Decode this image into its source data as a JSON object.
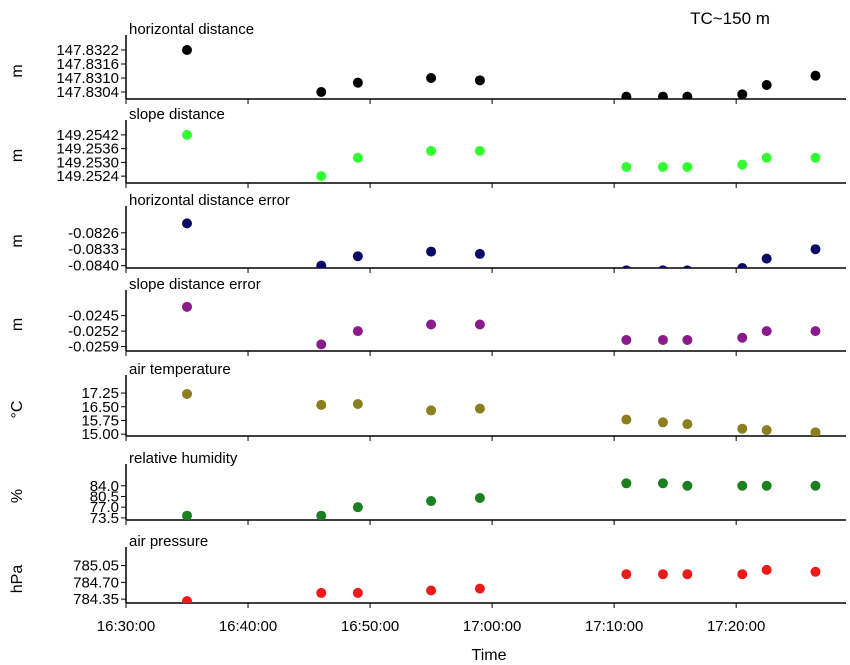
{
  "figure": {
    "annotation": "TC~150 m",
    "xlabel": "Time",
    "x_ticks": [
      "16:30:00",
      "16:40:00",
      "16:50:00",
      "17:00:00",
      "17:10:00",
      "17:20:00"
    ],
    "x_tick_minutes": [
      0,
      10,
      20,
      30,
      40,
      50
    ],
    "x_range_minutes": [
      0,
      59
    ],
    "x_origin_label": "16:30:00",
    "grid": false,
    "legend": "none"
  },
  "chart_data": [
    {
      "type": "scatter",
      "title": "horizontal distance",
      "ylabel": "m",
      "color": "#000000",
      "ylim": [
        147.8301,
        147.8325
      ],
      "yticks": [
        147.8304,
        147.831,
        147.8316,
        147.8322
      ],
      "ytick_labels": [
        "147.8304",
        "147.8310",
        "147.8316",
        "147.8322"
      ],
      "x": [
        "16:35:00",
        "16:46:00",
        "16:49:00",
        "16:55:00",
        "16:59:00",
        "17:11:00",
        "17:14:00",
        "17:16:00",
        "17:20:30",
        "17:22:30",
        "17:26:30"
      ],
      "y": [
        147.8322,
        147.8304,
        147.8308,
        147.831,
        147.8309,
        147.8302,
        147.8302,
        147.8302,
        147.8303,
        147.8307,
        147.8311
      ]
    },
    {
      "type": "scatter",
      "title": "slope distance",
      "ylabel": "m",
      "color": "#33ff33",
      "ylim": [
        149.2521,
        149.2545
      ],
      "yticks": [
        149.2524,
        149.253,
        149.2536,
        149.2542
      ],
      "ytick_labels": [
        "149.2524",
        "149.2530",
        "149.2536",
        "149.2542"
      ],
      "x": [
        "16:35:00",
        "16:46:00",
        "16:49:00",
        "16:55:00",
        "16:59:00",
        "17:11:00",
        "17:14:00",
        "17:16:00",
        "17:20:30",
        "17:22:30",
        "17:26:30"
      ],
      "y": [
        149.2542,
        149.2524,
        149.2532,
        149.2535,
        149.2535,
        149.2528,
        149.2528,
        149.2528,
        149.2529,
        149.2532,
        149.2532
      ]
    },
    {
      "type": "scatter",
      "title": "horizontal distance error",
      "ylabel": "m",
      "color": "#0a0a66",
      "ylim": [
        -0.0841,
        -0.0818
      ],
      "yticks": [
        -0.084,
        -0.0833,
        -0.0826
      ],
      "ytick_labels": [
        "-0.0840",
        "-0.0833",
        "-0.0826"
      ],
      "x": [
        "16:35:00",
        "16:46:00",
        "16:49:00",
        "16:55:00",
        "16:59:00",
        "17:11:00",
        "17:14:00",
        "17:16:00",
        "17:20:30",
        "17:22:30",
        "17:26:30"
      ],
      "y": [
        -0.0822,
        -0.084,
        -0.0836,
        -0.0834,
        -0.0835,
        -0.0842,
        -0.0842,
        -0.0842,
        -0.0841,
        -0.0837,
        -0.0833
      ]
    },
    {
      "type": "scatter",
      "title": "slope distance error",
      "ylabel": "m",
      "color": "#8b1a8b",
      "ylim": [
        -0.0261,
        -0.0237
      ],
      "yticks": [
        -0.0259,
        -0.0252,
        -0.0245
      ],
      "ytick_labels": [
        "-0.0259",
        "-0.0252",
        "-0.0245"
      ],
      "x": [
        "16:35:00",
        "16:46:00",
        "16:49:00",
        "16:55:00",
        "16:59:00",
        "17:11:00",
        "17:14:00",
        "17:16:00",
        "17:20:30",
        "17:22:30",
        "17:26:30"
      ],
      "y": [
        -0.0241,
        -0.0258,
        -0.0252,
        -0.0249,
        -0.0249,
        -0.0256,
        -0.0256,
        -0.0256,
        -0.0255,
        -0.0252,
        -0.0252
      ]
    },
    {
      "type": "scatter",
      "title": "air temperature",
      "ylabel": "°C",
      "color": "#8c7e1e",
      "ylim": [
        14.9,
        17.8
      ],
      "yticks": [
        15.0,
        15.75,
        16.5,
        17.25
      ],
      "ytick_labels": [
        "15.00",
        "15.75",
        "16.50",
        "17.25"
      ],
      "x": [
        "16:35:00",
        "16:46:00",
        "16:49:00",
        "16:55:00",
        "16:59:00",
        "17:11:00",
        "17:14:00",
        "17:16:00",
        "17:20:30",
        "17:22:30",
        "17:26:30"
      ],
      "y": [
        17.2,
        16.6,
        16.65,
        16.3,
        16.4,
        15.8,
        15.65,
        15.55,
        15.3,
        15.22,
        15.1
      ]
    },
    {
      "type": "scatter",
      "title": "relative humidity",
      "ylabel": "%",
      "color": "#1a8020",
      "ylim": [
        72.8,
        88.5
      ],
      "yticks": [
        73.5,
        77.0,
        80.5,
        84.0
      ],
      "ytick_labels": [
        "73.5",
        "77.0",
        "80.5",
        "84.0"
      ],
      "x": [
        "16:35:00",
        "16:46:00",
        "16:49:00",
        "16:55:00",
        "16:59:00",
        "17:11:00",
        "17:14:00",
        "17:16:00",
        "17:20:30",
        "17:22:30",
        "17:26:30"
      ],
      "y": [
        74.2,
        74.2,
        77.0,
        79.0,
        80.0,
        84.8,
        84.8,
        84.0,
        84.0,
        84.0,
        84.0
      ]
    },
    {
      "type": "scatter",
      "title": "air pressure",
      "ylabel": "hPa",
      "color": "#ee1a1a",
      "ylim": [
        784.27,
        785.27
      ],
      "yticks": [
        784.35,
        784.7,
        785.05
      ],
      "ytick_labels": [
        "784.35",
        "784.70",
        "785.05"
      ],
      "x": [
        "16:35:00",
        "16:46:00",
        "16:49:00",
        "16:55:00",
        "16:59:00",
        "17:11:00",
        "17:14:00",
        "17:16:00",
        "17:20:30",
        "17:22:30",
        "17:26:30"
      ],
      "y": [
        784.31,
        784.48,
        784.48,
        784.53,
        784.57,
        784.87,
        784.87,
        784.87,
        784.87,
        784.96,
        784.92
      ]
    }
  ]
}
